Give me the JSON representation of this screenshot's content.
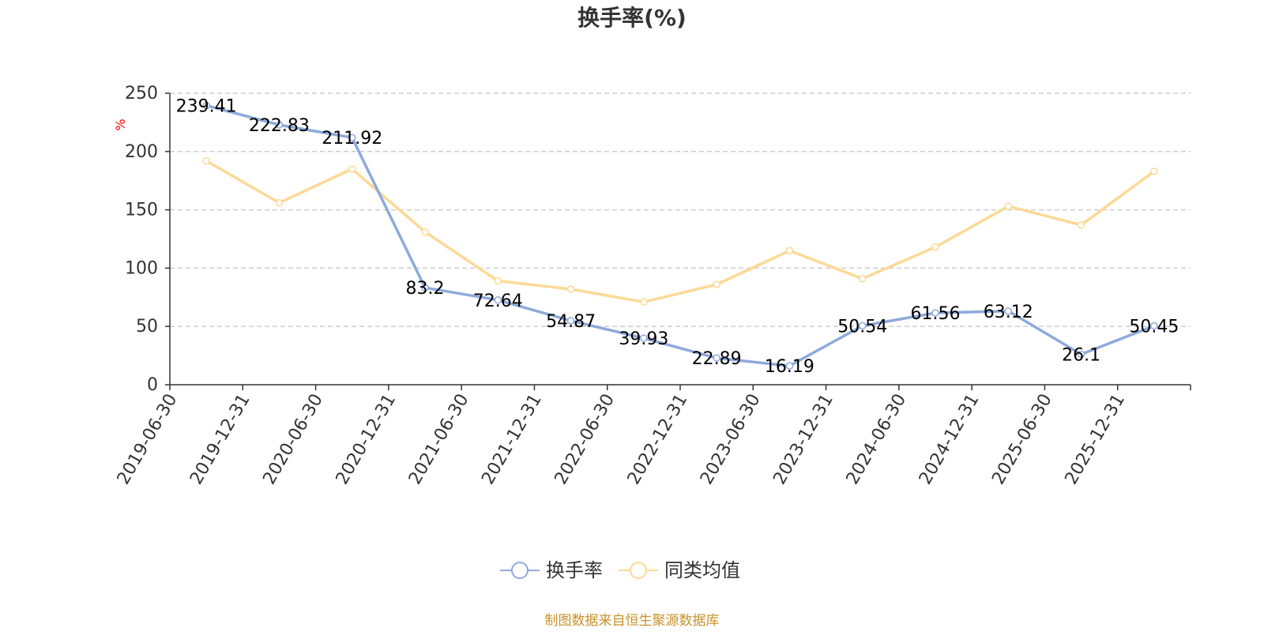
{
  "chart_data": {
    "type": "line",
    "title": "换手率(%)",
    "ylabel": "%",
    "xlabel": "",
    "ylim": [
      0,
      250
    ],
    "yticks": [
      0,
      50,
      100,
      150,
      200,
      250
    ],
    "grid": "horizontal-dashed",
    "legend_position": "bottom",
    "categories": [
      "2019-06-30",
      "2019-12-31",
      "2020-06-30",
      "2020-12-31",
      "2021-06-30",
      "2021-12-31",
      "2022-06-30",
      "2022-12-31",
      "2023-06-30",
      "2023-12-31",
      "2024-06-30",
      "2024-12-31",
      "2025-06-30",
      "2025-12-31"
    ],
    "series": [
      {
        "name": "换手率",
        "color": "#8eaadb",
        "values": [
          239.41,
          222.83,
          211.92,
          83.2,
          72.64,
          54.87,
          39.93,
          22.89,
          16.19,
          50.54,
          61.56,
          63.12,
          26.1,
          50.45
        ],
        "labels": [
          "239.41",
          "222.83",
          "211.92",
          "83.2",
          "72.64",
          "54.87",
          "39.93",
          "22.89",
          "16.19",
          "50.54",
          "61.56",
          "63.12",
          "26.1",
          "50.45"
        ]
      },
      {
        "name": "同类均值",
        "color": "#fcd995",
        "values": [
          192,
          156,
          185,
          131,
          89,
          82,
          71,
          86,
          115,
          91,
          118,
          153,
          137,
          183
        ]
      }
    ]
  },
  "source": "制图数据来自恒生聚源数据库"
}
